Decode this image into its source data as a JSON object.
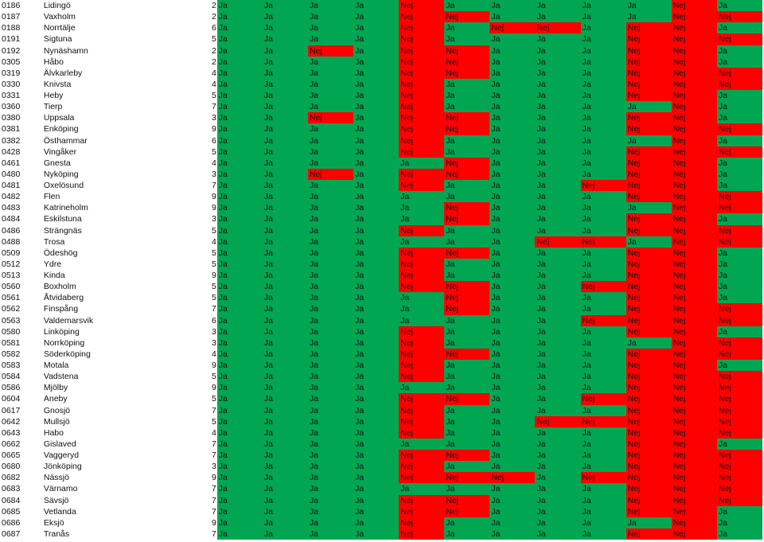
{
  "rows": [
    [
      "0186",
      "Lidingö",
      "2",
      "Ja",
      "Ja",
      "Ja",
      "Ja",
      "Nej",
      "Ja",
      "Ja",
      "Ja",
      "Ja",
      "Ja",
      "Nej",
      "Ja"
    ],
    [
      "0187",
      "Vaxholm",
      "2",
      "Ja",
      "Ja",
      "Ja",
      "Ja",
      "Nej",
      "Nej",
      "Ja",
      "Ja",
      "Ja",
      "Ja",
      "Nej",
      "Nej"
    ],
    [
      "0188",
      "Norrtälje",
      "6",
      "Ja",
      "Ja",
      "Ja",
      "Ja",
      "Nej",
      "Ja",
      "Nej",
      "Nej",
      "Ja",
      "Nej",
      "Nej",
      "Ja"
    ],
    [
      "0191",
      "Sigtuna",
      "5",
      "Ja",
      "Ja",
      "Ja",
      "Ja",
      "Nej",
      "Ja",
      "Ja",
      "Ja",
      "Ja",
      "Nej",
      "Nej",
      "Nej"
    ],
    [
      "0192",
      "Nynäshamn",
      "2",
      "Ja",
      "Ja",
      "Nej",
      "Ja",
      "Nej",
      "Nej",
      "Ja",
      "Ja",
      "Ja",
      "Nej",
      "Nej",
      "Ja"
    ],
    [
      "0305",
      "Håbo",
      "2",
      "Ja",
      "Ja",
      "Ja",
      "Ja",
      "Nej",
      "Nej",
      "Ja",
      "Ja",
      "Ja",
      "Nej",
      "Nej",
      "Ja"
    ],
    [
      "0319",
      "Älvkarleby",
      "4",
      "Ja",
      "Ja",
      "Ja",
      "Ja",
      "Nej",
      "Nej",
      "Ja",
      "Ja",
      "Ja",
      "Nej",
      "Nej",
      "Nej"
    ],
    [
      "0330",
      "Knivsta",
      "4",
      "Ja",
      "Ja",
      "Ja",
      "Ja",
      "Nej",
      "Ja",
      "Ja",
      "Ja",
      "Ja",
      "Nej",
      "Nej",
      "Nej"
    ],
    [
      "0331",
      "Heby",
      "5",
      "Ja",
      "Ja",
      "Ja",
      "Ja",
      "Nej",
      "Ja",
      "Ja",
      "Ja",
      "Ja",
      "Nej",
      "Nej",
      "Ja"
    ],
    [
      "0360",
      "Tierp",
      "7",
      "Ja",
      "Ja",
      "Ja",
      "Ja",
      "Nej",
      "Ja",
      "Ja",
      "Ja",
      "Ja",
      "Ja",
      "Nej",
      "Ja"
    ],
    [
      "0380",
      "Uppsala",
      "3",
      "Ja",
      "Ja",
      "Nej",
      "Ja",
      "Nej",
      "Nej",
      "Ja",
      "Ja",
      "Ja",
      "Nej",
      "Nej",
      "Ja"
    ],
    [
      "0381",
      "Enköping",
      "9",
      "Ja",
      "Ja",
      "Ja",
      "Ja",
      "Nej",
      "Nej",
      "Ja",
      "Ja",
      "Ja",
      "Nej",
      "Nej",
      "Nej"
    ],
    [
      "0382",
      "Östhammar",
      "6",
      "Ja",
      "Ja",
      "Ja",
      "Ja",
      "Nej",
      "Ja",
      "Ja",
      "Ja",
      "Ja",
      "Ja",
      "Nej",
      "Ja"
    ],
    [
      "0428",
      "Vingåker",
      "5",
      "Ja",
      "Ja",
      "Ja",
      "Ja",
      "Nej",
      "Ja",
      "Ja",
      "Ja",
      "Ja",
      "Nej",
      "Nej",
      "Nej"
    ],
    [
      "0461",
      "Gnesta",
      "4",
      "Ja",
      "Ja",
      "Ja",
      "Ja",
      "Ja",
      "Nej",
      "Ja",
      "Ja",
      "Ja",
      "Nej",
      "Nej",
      "Ja"
    ],
    [
      "0480",
      "Nyköping",
      "3",
      "Ja",
      "Ja",
      "Nej",
      "Ja",
      "Nej",
      "Nej",
      "Ja",
      "Ja",
      "Ja",
      "Nej",
      "Nej",
      "Ja"
    ],
    [
      "0481",
      "Oxelösund",
      "7",
      "Ja",
      "Ja",
      "Ja",
      "Ja",
      "Nej",
      "Ja",
      "Ja",
      "Ja",
      "Nej",
      "Nej",
      "Nej",
      "Ja"
    ],
    [
      "0482",
      "Flen",
      "9",
      "Ja",
      "Ja",
      "Ja",
      "Ja",
      "Ja",
      "Ja",
      "Ja",
      "Ja",
      "Ja",
      "Nej",
      "Nej",
      "Nej"
    ],
    [
      "0483",
      "Katrineholm",
      "9",
      "Ja",
      "Ja",
      "Ja",
      "Ja",
      "Ja",
      "Nej",
      "Ja",
      "Ja",
      "Ja",
      "Ja",
      "Nej",
      "Nej"
    ],
    [
      "0484",
      "Eskilstuna",
      "3",
      "Ja",
      "Ja",
      "Ja",
      "Ja",
      "Ja",
      "Nej",
      "Ja",
      "Ja",
      "Ja",
      "Nej",
      "Nej",
      "Ja"
    ],
    [
      "0486",
      "Strängnäs",
      "5",
      "Ja",
      "Ja",
      "Ja",
      "Ja",
      "Nej",
      "Ja",
      "Ja",
      "Ja",
      "Ja",
      "Nej",
      "Nej",
      "Nej"
    ],
    [
      "0488",
      "Trosa",
      "4",
      "Ja",
      "Ja",
      "Ja",
      "Ja",
      "Ja",
      "Ja",
      "Ja",
      "Nej",
      "Nej",
      "Ja",
      "Nej",
      "Nej"
    ],
    [
      "0509",
      "Ödeshög",
      "5",
      "Ja",
      "Ja",
      "Ja",
      "Ja",
      "Nej",
      "Nej",
      "Ja",
      "Ja",
      "Ja",
      "Nej",
      "Nej",
      "Ja"
    ],
    [
      "0512",
      "Ydre",
      "5",
      "Ja",
      "Ja",
      "Ja",
      "Ja",
      "Nej",
      "Ja",
      "Ja",
      "Ja",
      "Ja",
      "Nej",
      "Nej",
      "Ja"
    ],
    [
      "0513",
      "Kinda",
      "9",
      "Ja",
      "Ja",
      "Ja",
      "Ja",
      "Nej",
      "Ja",
      "Ja",
      "Ja",
      "Ja",
      "Nej",
      "Nej",
      "Ja"
    ],
    [
      "0560",
      "Boxholm",
      "5",
      "Ja",
      "Ja",
      "Ja",
      "Ja",
      "Nej",
      "Nej",
      "Ja",
      "Ja",
      "Nej",
      "Nej",
      "Nej",
      "Ja"
    ],
    [
      "0561",
      "Åtvidaberg",
      "5",
      "Ja",
      "Ja",
      "Ja",
      "Ja",
      "Ja",
      "Nej",
      "Ja",
      "Ja",
      "Ja",
      "Nej",
      "Nej",
      "Ja"
    ],
    [
      "0562",
      "Finspång",
      "7",
      "Ja",
      "Ja",
      "Ja",
      "Ja",
      "Ja",
      "Nej",
      "Ja",
      "Ja",
      "Ja",
      "Nej",
      "Nej",
      "Nej"
    ],
    [
      "0563",
      "Valdemarsvik",
      "6",
      "Ja",
      "Ja",
      "Ja",
      "Ja",
      "Ja",
      "Ja",
      "Ja",
      "Ja",
      "Nej",
      "Nej",
      "Nej",
      "Nej"
    ],
    [
      "0580",
      "Linköping",
      "3",
      "Ja",
      "Ja",
      "Ja",
      "Ja",
      "Nej",
      "Ja",
      "Ja",
      "Ja",
      "Ja",
      "Nej",
      "Nej",
      "Ja"
    ],
    [
      "0581",
      "Norrköping",
      "3",
      "Ja",
      "Ja",
      "Ja",
      "Ja",
      "Nej",
      "Ja",
      "Ja",
      "Ja",
      "Ja",
      "Ja",
      "Nej",
      "Nej"
    ],
    [
      "0582",
      "Söderköping",
      "4",
      "Ja",
      "Ja",
      "Ja",
      "Ja",
      "Nej",
      "Nej",
      "Ja",
      "Ja",
      "Ja",
      "Nej",
      "Nej",
      "Nej"
    ],
    [
      "0583",
      "Motala",
      "9",
      "Ja",
      "Ja",
      "Ja",
      "Ja",
      "Nej",
      "Ja",
      "Ja",
      "Ja",
      "Ja",
      "Nej",
      "Nej",
      "Ja"
    ],
    [
      "0584",
      "Vadstena",
      "5",
      "Ja",
      "Ja",
      "Ja",
      "Ja",
      "Nej",
      "Ja",
      "Ja",
      "Ja",
      "Ja",
      "Nej",
      "Nej",
      "Nej"
    ],
    [
      "0586",
      "Mjölby",
      "9",
      "Ja",
      "Ja",
      "Ja",
      "Ja",
      "Ja",
      "Ja",
      "Ja",
      "Ja",
      "Ja",
      "Nej",
      "Nej",
      "Nej"
    ],
    [
      "0604",
      "Aneby",
      "5",
      "Ja",
      "Ja",
      "Ja",
      "Ja",
      "Nej",
      "Nej",
      "Ja",
      "Ja",
      "Nej",
      "Nej",
      "Nej",
      "Nej"
    ],
    [
      "0617",
      "Gnosjö",
      "7",
      "Ja",
      "Ja",
      "Ja",
      "Ja",
      "Nej",
      "Ja",
      "Ja",
      "Ja",
      "Ja",
      "Nej",
      "Nej",
      "Nej"
    ],
    [
      "0642",
      "Mullsjö",
      "5",
      "Ja",
      "Ja",
      "Ja",
      "Ja",
      "Nej",
      "Ja",
      "Ja",
      "Nej",
      "Nej",
      "Nej",
      "Nej",
      "Nej"
    ],
    [
      "0643",
      "Habo",
      "4",
      "Ja",
      "Ja",
      "Ja",
      "Ja",
      "Nej",
      "Ja",
      "Ja",
      "Ja",
      "Ja",
      "Nej",
      "Nej",
      "Nej"
    ],
    [
      "0662",
      "Gislaved",
      "7",
      "Ja",
      "Ja",
      "Ja",
      "Ja",
      "Ja",
      "Ja",
      "Ja",
      "Ja",
      "Ja",
      "Nej",
      "Nej",
      "Ja"
    ],
    [
      "0665",
      "Vaggeryd",
      "7",
      "Ja",
      "Ja",
      "Ja",
      "Ja",
      "Nej",
      "Nej",
      "Ja",
      "Ja",
      "Ja",
      "Nej",
      "Nej",
      "Nej"
    ],
    [
      "0680",
      "Jönköping",
      "3",
      "Ja",
      "Ja",
      "Ja",
      "Ja",
      "Nej",
      "Ja",
      "Ja",
      "Ja",
      "Ja",
      "Nej",
      "Nej",
      "Nej"
    ],
    [
      "0682",
      "Nässjö",
      "9",
      "Ja",
      "Ja",
      "Ja",
      "Ja",
      "Nej",
      "Nej",
      "Nej",
      "Ja",
      "Nej",
      "Nej",
      "Nej",
      "Nej"
    ],
    [
      "0683",
      "Värnamo",
      "7",
      "Ja",
      "Ja",
      "Ja",
      "Ja",
      "Ja",
      "Ja",
      "Ja",
      "Ja",
      "Ja",
      "Nej",
      "Nej",
      "Nej"
    ],
    [
      "0684",
      "Sävsjö",
      "7",
      "Ja",
      "Ja",
      "Ja",
      "Ja",
      "Nej",
      "Nej",
      "Ja",
      "Ja",
      "Ja",
      "Nej",
      "Nej",
      "Nej"
    ],
    [
      "0685",
      "Vetlanda",
      "7",
      "Ja",
      "Ja",
      "Ja",
      "Ja",
      "Nej",
      "Nej",
      "Ja",
      "Ja",
      "Ja",
      "Nej",
      "Nej",
      "Ja"
    ],
    [
      "0686",
      "Eksjö",
      "9",
      "Ja",
      "Ja",
      "Ja",
      "Ja",
      "Nej",
      "Ja",
      "Ja",
      "Ja",
      "Ja",
      "Ja",
      "Nej",
      "Ja"
    ],
    [
      "0687",
      "Tranås",
      "7",
      "Ja",
      "Ja",
      "Ja",
      "Ja",
      "Nej",
      "Ja",
      "Ja",
      "Ja",
      "Ja",
      "Nej",
      "Nej",
      "Ja"
    ]
  ],
  "colors": {
    "ja": "#00a651",
    "nej": "#ff0000"
  }
}
